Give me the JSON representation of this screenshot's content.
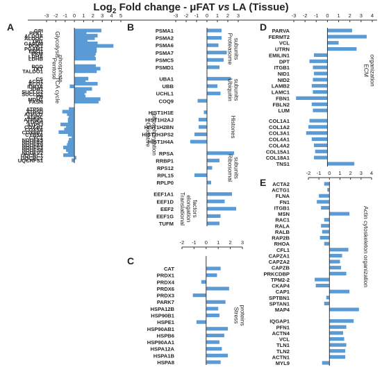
{
  "title": {
    "log": "Log",
    "sub": "2",
    "rest": " Fold change - μFAT ",
    "vs": "vs",
    "tail": " LA (Tissue)"
  },
  "colors": {
    "bar": "#5b9bd5",
    "text": "#222222",
    "axis": "#333333"
  },
  "chart_data": [
    {
      "panel": "A",
      "type": "bar",
      "orientation": "horizontal",
      "xlim": [
        -3,
        5
      ],
      "xticks": [
        -3,
        -2,
        -1,
        0,
        1,
        2,
        3,
        4,
        5
      ],
      "grid": false,
      "groups": [
        {
          "label": "Glycolysis",
          "proteins": [
            "GPI",
            "PFKL",
            "ALDOA",
            "ALDOC",
            "TPI1",
            "GAPDH",
            "PGK1",
            "PGAM1",
            "ENO1",
            "PKM",
            "LDHA",
            "LDHB"
          ],
          "values": [
            2.9,
            1.3,
            2.5,
            2.2,
            1.4,
            2.5,
            4.2,
            2.4,
            2.4,
            2.3,
            2.2,
            2.3
          ]
        },
        {
          "label": "Pentose phosphate",
          "proteins": [
            "PGD",
            "TKT",
            "TALDO1"
          ],
          "values": [
            2.3,
            2.8,
            2.4
          ]
        },
        {
          "label": "TCA cycle",
          "proteins": [
            "CS",
            "ACO1",
            "ACO2",
            "IDH3A",
            "IDH1",
            "SUCLG2",
            "SUCLG2",
            "FH",
            "MDH1",
            "FASN"
          ],
          "values": [
            1.5,
            1.2,
            2.5,
            -0.5,
            1.9,
            1.3,
            1.1,
            1.2,
            2.8,
            2.6
          ]
        },
        {
          "label": "Oxidative phosphorylation",
          "proteins": [
            "ATP5B",
            "ATP5D",
            "ATP5J2",
            "ATP5L",
            "ATP5F1",
            "ATP5H",
            "ATP5J",
            "COX4I1",
            "COX5A",
            "COX6B1",
            "CYB5A",
            "CYC1",
            "NDUFA5",
            "NDUFA8",
            "NDUFA9",
            "NDUFS3",
            "NDUFS8",
            "NDUFV2",
            "UQCRC1",
            "UQCRC2",
            "UQCRFS1"
          ],
          "values": [
            -0.6,
            -1.3,
            -0.8,
            -0.6,
            -0.7,
            -0.7,
            -1.5,
            -0.9,
            -1.1,
            -1.7,
            -0.7,
            -0.3,
            -0.6,
            -0.7,
            -0.8,
            -1.2,
            -0.9,
            -0.7,
            -1.2,
            0.2,
            -0.3
          ]
        }
      ]
    },
    {
      "panel": "B",
      "type": "bar",
      "orientation": "horizontal",
      "xlim": [
        -3,
        3
      ],
      "xticks": [
        -3,
        -2,
        -1,
        0,
        1,
        2,
        3
      ],
      "grid": false,
      "groups": [
        {
          "label": "Proteasome subunits",
          "proteins": [
            "PSMA1",
            "PSMA2",
            "PSMA6",
            "PSMA7",
            "PSMC5",
            "PSMD1"
          ],
          "values": [
            1.4,
            1.4,
            1.1,
            1.9,
            1.6,
            1.2
          ]
        },
        {
          "label": "Ubiquitin subunits",
          "proteins": [
            "UBA1",
            "UBB",
            "UCHL1",
            "COQ9"
          ],
          "values": [
            2.3,
            1.0,
            1.3,
            -0.9
          ]
        },
        {
          "label": "Histones",
          "proteins": [
            "HIST1H1E",
            "HIST1H2AJ",
            "HIST1H2BN",
            "HIST2H3PS2",
            "HIST1H4A"
          ],
          "values": [
            -0.3,
            -0.8,
            -0.8,
            -1.2,
            -1.6
          ]
        },
        {
          "label": "Ribosomal subunits",
          "proteins": [
            "RPSA",
            "RRBP1",
            "RPS12",
            "RPL15",
            "RPLP0"
          ],
          "values": [
            2.6,
            1.2,
            0.5,
            -1.2,
            0.4
          ]
        },
        {
          "label": "Translational elongation factors",
          "proteins": [
            "EEF1A1",
            "EEF1D",
            "EEF2",
            "EEF1G",
            "TUFM"
          ],
          "values": [
            2.4,
            1.7,
            2.8,
            1.3,
            1.2
          ]
        }
      ]
    },
    {
      "panel": "C",
      "type": "bar",
      "orientation": "horizontal",
      "xlim": [
        -2,
        3
      ],
      "xticks": [
        -2,
        -1,
        0,
        1,
        2,
        3
      ],
      "grid": false,
      "groups": [
        {
          "label": "Stress proteins",
          "proteins": [
            "CAT",
            "PRDX1",
            "PRDX4",
            "PRDX6",
            "PRDX3",
            "PARK7",
            "HSPA12B",
            "HSP90B1",
            "HSPE1",
            "HSP90AB1",
            "HSPB6",
            "HSP90AA1",
            "HSPA12A",
            "HSPA1B",
            "HSPA8"
          ],
          "values": [
            1.2,
            0.9,
            -0.4,
            1.9,
            -1.1,
            1.6,
            1.0,
            1.1,
            -0.8,
            1.8,
            1.5,
            1.1,
            1.3,
            1.8,
            1.2
          ]
        }
      ]
    },
    {
      "panel": "D",
      "type": "bar",
      "orientation": "horizontal",
      "xlim": [
        -3,
        4
      ],
      "xticks": [
        -3,
        -2,
        -1,
        0,
        1,
        2,
        3,
        4
      ],
      "grid": false,
      "groups": [
        {
          "label": "ECM organization",
          "proteins": [
            "PARVA",
            "FERMT2",
            "VCL",
            "UTRN",
            "EMILIN1",
            "DPT",
            "ITGB1",
            "NID1",
            "NID2",
            "LAMB2",
            "LAMC1",
            "FBN1",
            "FBLN2",
            "LUM"
          ],
          "values": [
            2.2,
            3.5,
            1.0,
            2.6,
            -1.2,
            -1.6,
            -1.3,
            -1.2,
            -1.3,
            -1.4,
            -1.3,
            -2.8,
            -1.4,
            -1.3
          ]
        },
        {
          "label": "",
          "proteins": [
            "COL1A1",
            "COL1A2",
            "COL3A1",
            "COL4A1",
            "COL4A2",
            "COL15A1",
            "COL18A1",
            "TNS1"
          ],
          "values": [
            -1.6,
            -1.7,
            -1.9,
            -1.4,
            -1.2,
            -1.1,
            -1.2,
            2.4
          ]
        }
      ]
    },
    {
      "panel": "E",
      "type": "bar",
      "orientation": "horizontal",
      "xlim": [
        -2,
        4
      ],
      "xticks": [
        -2,
        -1,
        0,
        1,
        2,
        3,
        4
      ],
      "grid": false,
      "groups": [
        {
          "label": "Actin cytoskeleton organization",
          "proteins": [
            "ACTA2",
            "ACTG1",
            "FLNA",
            "FN1",
            "ITGB1",
            "MSN",
            "RAC1",
            "RALA",
            "RALB",
            "RAP2B",
            "RHOA",
            "CFL1",
            "CAPZA1",
            "CAPZA2",
            "CAPZB",
            "PRKCDBP",
            "TPM2-2",
            "CKAP4",
            "CAP1",
            "SPTBN1",
            "SPTAN1",
            "MAP4"
          ],
          "values": [
            -0.5,
            -0.2,
            -1.0,
            -1.2,
            -0.8,
            1.9,
            -0.5,
            -0.8,
            -0.7,
            -0.9,
            -0.5,
            1.8,
            1.2,
            1.0,
            1.1,
            1.6,
            -1.4,
            -1.3,
            1.9,
            -0.3,
            -0.5,
            2.8
          ]
        },
        {
          "label": "",
          "proteins": [
            "IQGAP1",
            "PFN1",
            "ACTN4",
            "VCL",
            "TLN1",
            "TLN2",
            "ACTN1",
            "MYL9"
          ],
          "values": [
            2.3,
            1.6,
            1.3,
            1.4,
            1.6,
            1.5,
            1.5,
            -0.7
          ]
        }
      ]
    }
  ]
}
